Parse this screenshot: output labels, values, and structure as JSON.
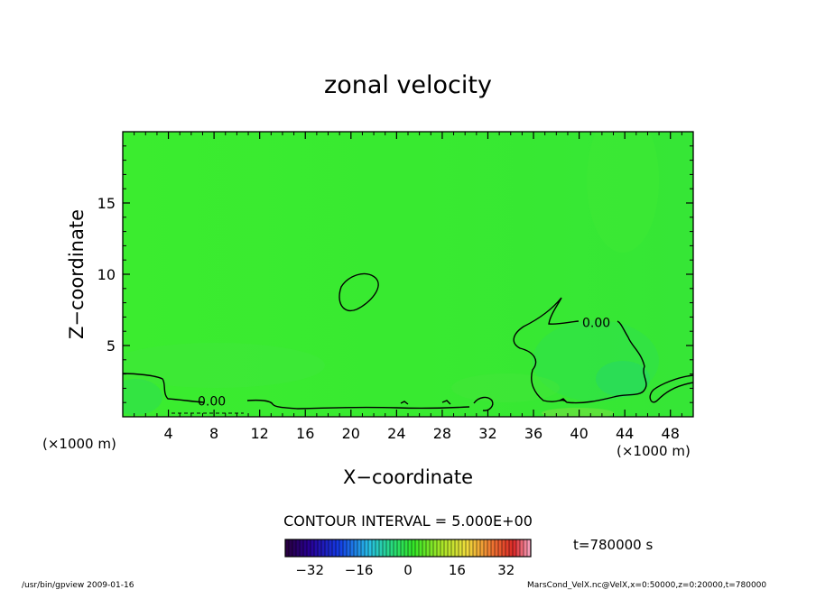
{
  "chart_data": {
    "type": "heatmap",
    "title": "zonal velocity",
    "xlabel": "X−coordinate",
    "ylabel": "Z−coordinate",
    "x_unit": "(×1000 m)",
    "y_unit": "(×1000 m)",
    "xlim": [
      0,
      50
    ],
    "ylim": [
      0,
      20
    ],
    "x_ticks": [
      4,
      8,
      12,
      16,
      20,
      24,
      28,
      32,
      36,
      40,
      44,
      48
    ],
    "y_ticks": [
      5,
      10,
      15
    ],
    "contour_interval_label": "CONTOUR INTERVAL = 5.000E+00",
    "contour_labels": [
      {
        "x": 7.8,
        "y": 1.1,
        "text": "0.00"
      },
      {
        "x": 41.5,
        "y": 6.6,
        "text": "0.00"
      }
    ],
    "colorbar": {
      "range": [
        -40,
        40
      ],
      "ticks": [
        -32,
        -16,
        0,
        16,
        32
      ],
      "tick_labels": [
        "−32",
        "−16",
        "0",
        "16",
        "32"
      ]
    },
    "time_label": "t=780000 s",
    "background_value": 0
  },
  "footer": {
    "left": "/usr/bin/gpview   2009-01-16",
    "right": "MarsCond_VelX.nc@VelX,x=0:50000,z=0:20000,t=780000"
  },
  "colors": {
    "field": "#33ee2e",
    "contour": "#000000"
  }
}
